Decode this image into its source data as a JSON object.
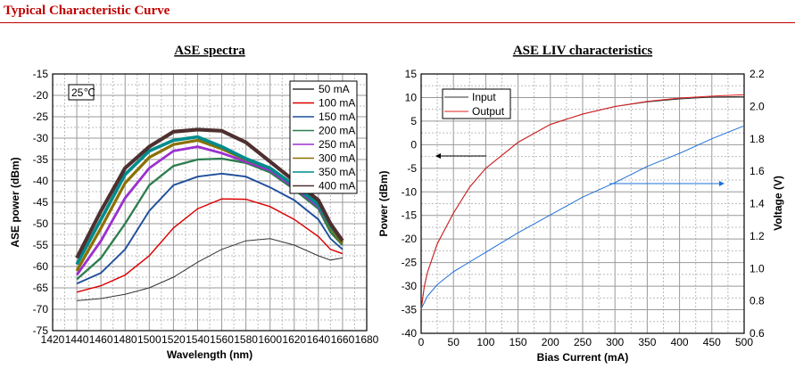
{
  "page_title": "Typical Characteristic Curve",
  "chart_data": [
    {
      "type": "line",
      "title": "ASE spectra",
      "xlabel": "Wavelength (nm)",
      "ylabel": "ASE power (dBm)",
      "xlim": [
        1420,
        1680
      ],
      "ylim": [
        -75,
        -15
      ],
      "xticks": [
        1420,
        1440,
        1460,
        1480,
        1500,
        1520,
        1540,
        1560,
        1580,
        1600,
        1620,
        1640,
        1660,
        1680
      ],
      "yticks": [
        -15,
        -20,
        -25,
        -30,
        -35,
        -40,
        -45,
        -50,
        -55,
        -60,
        -65,
        -70,
        -75
      ],
      "grid": true,
      "legend": "top-right",
      "annotation": "25℃",
      "x": [
        1440,
        1460,
        1480,
        1500,
        1520,
        1540,
        1560,
        1580,
        1600,
        1620,
        1640,
        1650,
        1660
      ],
      "series": [
        {
          "name": "50 mA",
          "color": "#333333",
          "values": [
            -68,
            -67.5,
            -66.5,
            -65,
            -62.5,
            -59,
            -56,
            -54,
            -53.5,
            -55,
            -57.5,
            -58.5,
            -58
          ]
        },
        {
          "name": "100 mA",
          "color": "#dd0000",
          "values": [
            -66,
            -64.5,
            -62,
            -57.5,
            -51,
            -46.5,
            -44.2,
            -44.3,
            -46,
            -49,
            -53,
            -56,
            -57
          ]
        },
        {
          "name": "150 mA",
          "color": "#1f4e9c",
          "values": [
            -64,
            -61.5,
            -56,
            -47,
            -41,
            -39,
            -38.3,
            -39,
            -41.5,
            -44.5,
            -49,
            -53.5,
            -56
          ]
        },
        {
          "name": "200 mA",
          "color": "#2e7d4f",
          "values": [
            -63,
            -58,
            -50,
            -41,
            -36.5,
            -35,
            -34.8,
            -35.8,
            -38,
            -42,
            -46.5,
            -52,
            -55
          ]
        },
        {
          "name": "250 mA",
          "color": "#9b30d0",
          "values": [
            -62,
            -54,
            -44,
            -37,
            -33,
            -32,
            -33.5,
            -35.5,
            -37.5,
            -41.5,
            -46,
            -51,
            -54.5
          ]
        },
        {
          "name": "300 mA",
          "color": "#8b7000",
          "values": [
            -61,
            -51,
            -40.5,
            -34.5,
            -31.5,
            -30.5,
            -32.5,
            -35,
            -37,
            -41,
            -45.5,
            -51,
            -54.5
          ]
        },
        {
          "name": "350 mA",
          "color": "#008b8b",
          "values": [
            -59.5,
            -49,
            -38.5,
            -33,
            -30.5,
            -29.7,
            -32,
            -34.8,
            -37,
            -41,
            -45.5,
            -50.5,
            -54
          ]
        },
        {
          "name": "400 mA",
          "color": "#4e3030",
          "values": [
            -58,
            -47,
            -37,
            -32,
            -28.5,
            -28,
            -28.3,
            -31,
            -35.5,
            -40,
            -44.5,
            -50,
            -54
          ]
        }
      ]
    },
    {
      "type": "line",
      "title": "ASE LIV characteristics",
      "xlabel": "Bias Current (mA)",
      "ylabel": "Power (dBm)",
      "y2label": "Voltage (V)",
      "xlim": [
        0,
        500
      ],
      "ylim": [
        -40,
        15
      ],
      "y2lim": [
        0.6,
        2.2
      ],
      "xticks": [
        0,
        50,
        100,
        150,
        200,
        250,
        300,
        350,
        400,
        450,
        500
      ],
      "yticks": [
        15,
        10,
        5,
        0,
        -5,
        -10,
        -15,
        -20,
        -25,
        -30,
        -35,
        -40
      ],
      "y2ticks": [
        "2.2",
        "2.0",
        "1.8",
        "1.6",
        "1.4",
        "1.2",
        "1.0",
        "0.8",
        "0.6"
      ],
      "grid": true,
      "legend": "top-left",
      "x": [
        0,
        5,
        10,
        25,
        50,
        75,
        100,
        150,
        200,
        250,
        300,
        350,
        400,
        450,
        500
      ],
      "series": [
        {
          "name": "Input",
          "color": "#333333",
          "axis": "left",
          "values": [
            -35,
            -30,
            -27,
            -21,
            -14.5,
            -9,
            -5,
            0.5,
            4.3,
            6.5,
            8.1,
            9.1,
            9.7,
            10.1,
            10.2
          ]
        },
        {
          "name": "Output",
          "color": "#e02020",
          "axis": "left",
          "values": [
            -35,
            -30,
            -27,
            -21,
            -14.5,
            -9,
            -5,
            0.5,
            4.3,
            6.5,
            8.1,
            9.2,
            9.9,
            10.3,
            10.6
          ]
        },
        {
          "color": "#1e6fd8",
          "axis": "right",
          "values": [
            0.75,
            0.79,
            0.83,
            0.9,
            0.98,
            1.04,
            1.1,
            1.22,
            1.33,
            1.44,
            1.53,
            1.63,
            1.71,
            1.8,
            1.88
          ]
        }
      ]
    }
  ]
}
